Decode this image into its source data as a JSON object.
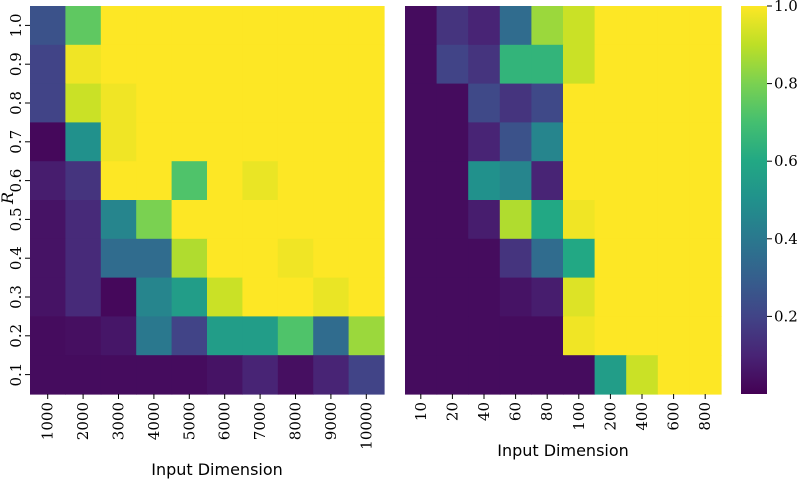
{
  "chart_data": [
    {
      "type": "heatmap",
      "xlabel": "Input Dimension",
      "ylabel": "R",
      "x_categories": [
        "1000",
        "2000",
        "3000",
        "4000",
        "5000",
        "6000",
        "7000",
        "8000",
        "9000",
        "10000"
      ],
      "y_categories": [
        "1.0",
        "0.9",
        "0.8",
        "0.7",
        "0.6",
        "0.5",
        "0.4",
        "0.3",
        "0.2",
        "0.1"
      ],
      "values": [
        [
          0.25,
          0.75,
          1.0,
          1.0,
          1.0,
          1.0,
          1.0,
          1.0,
          1.0,
          1.0
        ],
        [
          0.2,
          0.98,
          1.0,
          1.0,
          1.0,
          1.0,
          1.0,
          1.0,
          1.0,
          1.0
        ],
        [
          0.2,
          0.92,
          0.98,
          1.0,
          1.0,
          1.0,
          1.0,
          1.0,
          1.0,
          1.0
        ],
        [
          0.02,
          0.5,
          0.98,
          1.0,
          1.0,
          1.0,
          1.0,
          1.0,
          1.0,
          1.0
        ],
        [
          0.08,
          0.15,
          1.0,
          1.0,
          0.72,
          1.0,
          0.97,
          1.0,
          1.0,
          1.0
        ],
        [
          0.05,
          0.12,
          0.45,
          0.8,
          1.0,
          1.0,
          1.0,
          1.0,
          1.0,
          1.0
        ],
        [
          0.05,
          0.12,
          0.35,
          0.35,
          0.88,
          1.0,
          1.0,
          0.98,
          1.0,
          1.0
        ],
        [
          0.05,
          0.12,
          0.02,
          0.45,
          0.55,
          0.92,
          1.0,
          1.0,
          0.97,
          1.0
        ],
        [
          0.03,
          0.04,
          0.06,
          0.4,
          0.2,
          0.55,
          0.55,
          0.72,
          0.35,
          0.85
        ],
        [
          0.03,
          0.03,
          0.03,
          0.03,
          0.03,
          0.05,
          0.1,
          0.04,
          0.1,
          0.2
        ]
      ]
    },
    {
      "type": "heatmap",
      "xlabel": "Input Dimension",
      "ylabel": "",
      "x_categories": [
        "10",
        "20",
        "40",
        "60",
        "80",
        "100",
        "200",
        "400",
        "600",
        "800"
      ],
      "y_categories": [
        "1.0",
        "0.9",
        "0.8",
        "0.7",
        "0.6",
        "0.5",
        "0.4",
        "0.3",
        "0.2",
        "0.1"
      ],
      "values": [
        [
          0.03,
          0.15,
          0.1,
          0.35,
          0.85,
          0.92,
          1.0,
          1.0,
          1.0,
          1.0
        ],
        [
          0.03,
          0.2,
          0.15,
          0.65,
          0.65,
          0.92,
          1.0,
          1.0,
          1.0,
          1.0
        ],
        [
          0.03,
          0.03,
          0.22,
          0.15,
          0.22,
          1.0,
          1.0,
          1.0,
          1.0,
          1.0
        ],
        [
          0.03,
          0.03,
          0.1,
          0.25,
          0.45,
          1.0,
          1.0,
          1.0,
          1.0,
          1.0
        ],
        [
          0.03,
          0.03,
          0.5,
          0.45,
          0.1,
          1.0,
          1.0,
          1.0,
          1.0,
          1.0
        ],
        [
          0.03,
          0.03,
          0.08,
          0.88,
          0.6,
          0.98,
          1.0,
          1.0,
          1.0,
          1.0
        ],
        [
          0.03,
          0.03,
          0.03,
          0.15,
          0.35,
          0.6,
          1.0,
          1.0,
          1.0,
          1.0
        ],
        [
          0.03,
          0.03,
          0.03,
          0.05,
          0.08,
          0.95,
          1.0,
          1.0,
          1.0,
          1.0
        ],
        [
          0.03,
          0.03,
          0.03,
          0.03,
          0.03,
          0.98,
          1.0,
          1.0,
          1.0,
          1.0
        ],
        [
          0.03,
          0.03,
          0.03,
          0.03,
          0.03,
          0.03,
          0.55,
          0.92,
          1.0,
          1.0
        ]
      ]
    }
  ],
  "colorbar": {
    "colormap": "viridis",
    "range": [
      0.0,
      1.0
    ],
    "ticks": [
      {
        "value": 0.2,
        "label": "0.2"
      },
      {
        "value": 0.4,
        "label": "0.4"
      },
      {
        "value": 0.6,
        "label": "0.6"
      },
      {
        "value": 0.8,
        "label": "0.8"
      },
      {
        "value": 1.0,
        "label": "1.0"
      }
    ]
  }
}
